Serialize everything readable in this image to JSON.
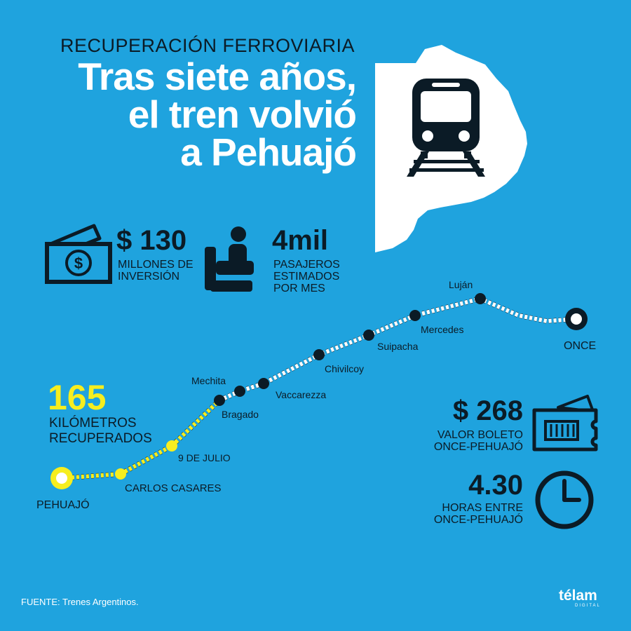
{
  "header": {
    "kicker": "RECUPERACIÓN FERROVIARIA",
    "title_lines": [
      "Tras siete años,",
      "el tren volvió",
      "a Pehuajó"
    ]
  },
  "stats": {
    "investment": {
      "value": "$ 130",
      "caption_lines": [
        "MILLONES DE",
        "INVERSIÓN"
      ]
    },
    "passengers": {
      "value": "4mil",
      "caption_lines": [
        "PASAJEROS",
        "ESTIMADOS",
        "POR MES"
      ]
    },
    "km": {
      "value": "165",
      "caption_lines": [
        "KILÓMETROS",
        "RECUPERADOS"
      ]
    },
    "ticket": {
      "value": "$ 268",
      "caption_lines": [
        "VALOR BOLETO",
        "ONCE-PEHUAJÓ"
      ]
    },
    "hours": {
      "value": "4.30",
      "caption_lines": [
        "HORAS ENTRE",
        "ONCE-PEHUAJÓ"
      ]
    }
  },
  "route": {
    "stations": [
      "PEHUAJÓ",
      "CARLOS CASARES",
      "9 DE JULIO",
      "Bragado",
      "Mechita",
      "Vaccarezza",
      "Chivilcoy",
      "Suipacha",
      "Mercedes",
      "Luján",
      "ONCE"
    ]
  },
  "footer": {
    "source": "FUENTE: Trenes Argentinos.",
    "logo": "télam",
    "logo_sub": "DIGITAL"
  },
  "colors": {
    "background": "#1fa3de",
    "dark": "#0b1b26",
    "accent": "#f6ee1f",
    "white": "#ffffff"
  },
  "icons": [
    "province-map-icon",
    "train-icon",
    "money-icon",
    "seat-icon",
    "ticket-icon",
    "clock-icon"
  ]
}
